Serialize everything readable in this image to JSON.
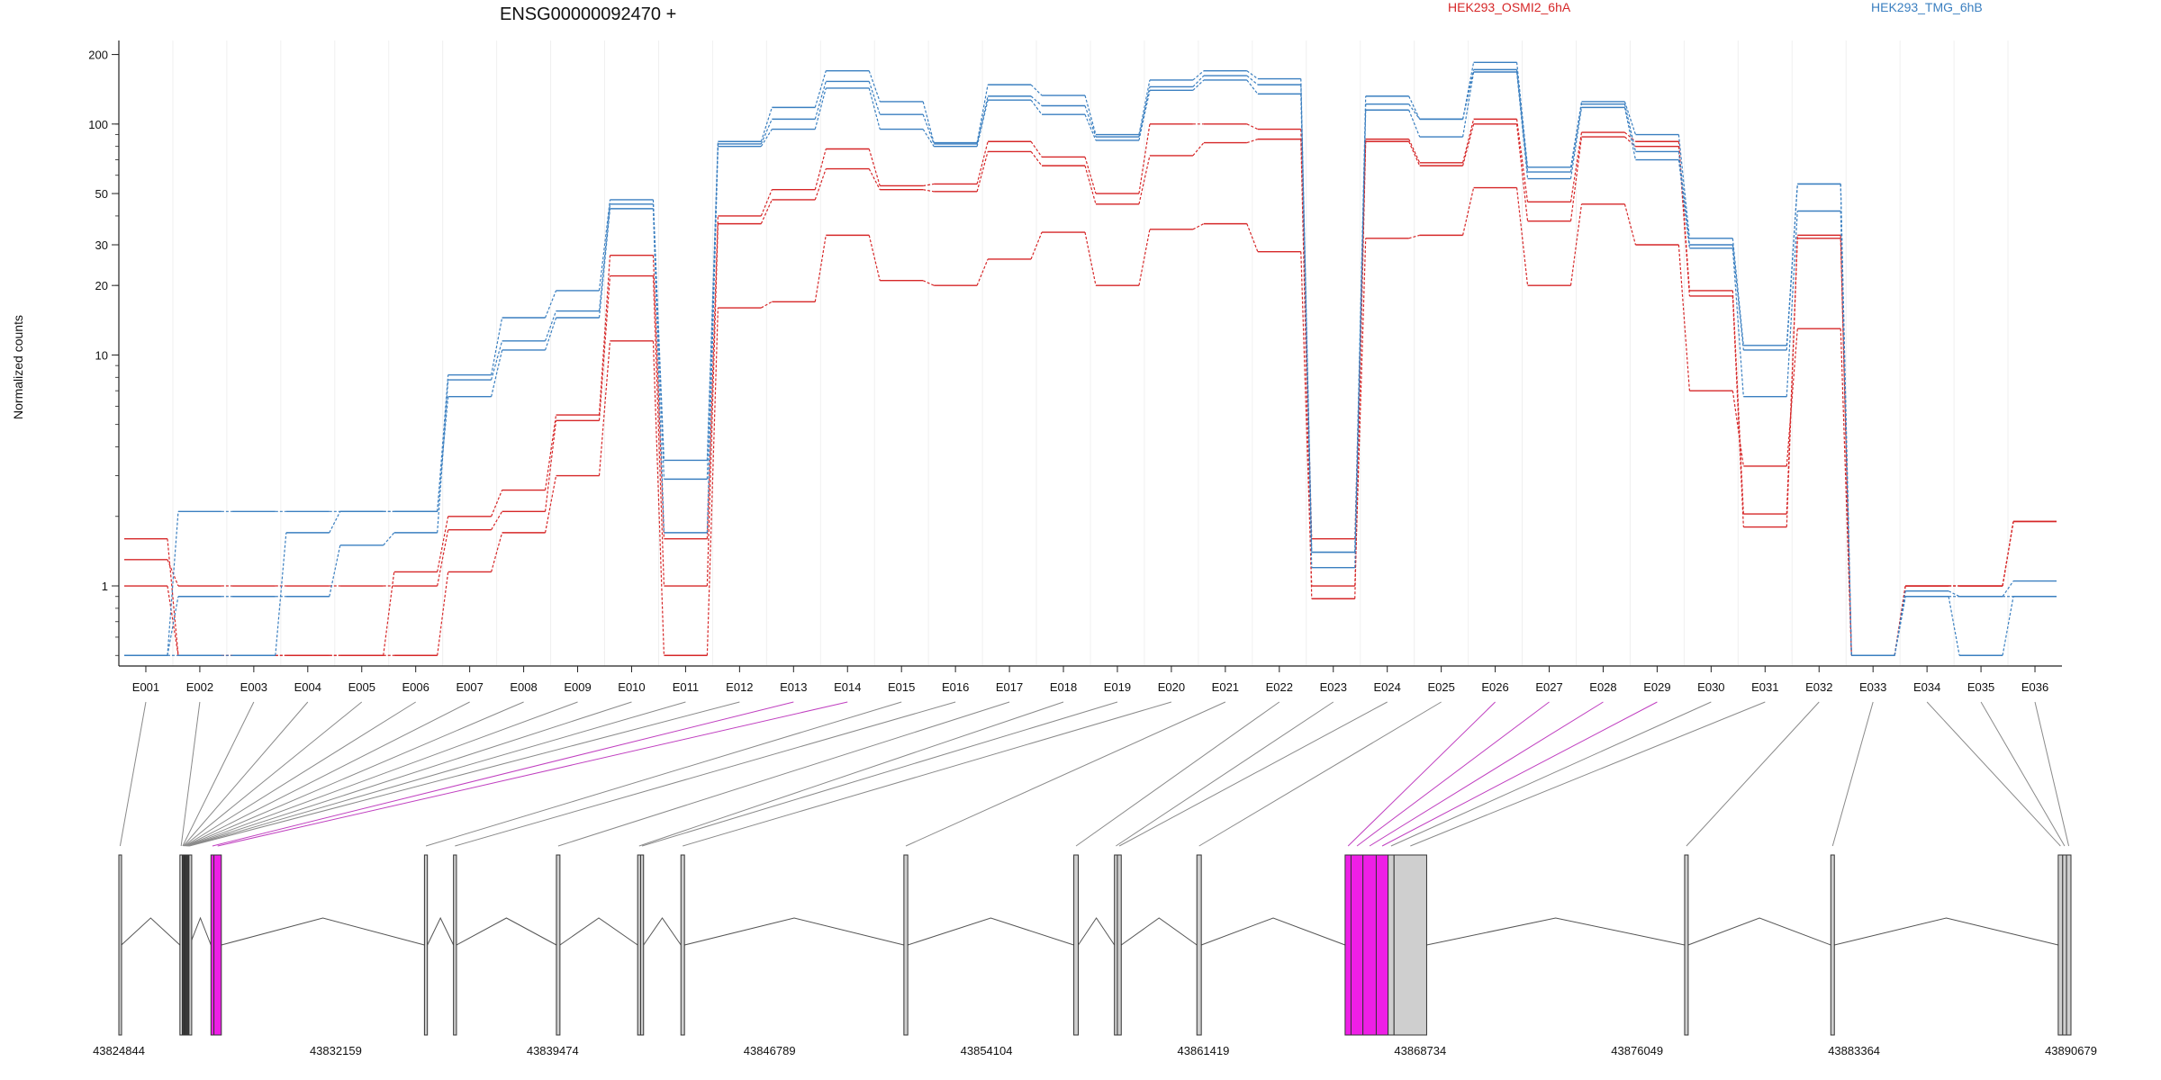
{
  "chart_data": {
    "type": "line",
    "title": "ENSG00000092470 +",
    "ylabel": "Normalized counts",
    "xlabel": "",
    "y_scale": "log",
    "ylim_display": [
      0.45,
      230
    ],
    "yticks": [
      1,
      10,
      20,
      30,
      50,
      100,
      200
    ],
    "zero_floor_display": 0.5,
    "grid": "vertical-light",
    "legend": [
      {
        "name": "HEK293_OSMI2_6hA",
        "color": "#d62728",
        "position": "top-right"
      },
      {
        "name": "HEK293_TMG_6hB",
        "color": "#3a7fc0",
        "position": "top-right"
      }
    ],
    "exons": [
      "E001",
      "E002",
      "E003",
      "E004",
      "E005",
      "E006",
      "E007",
      "E008",
      "E009",
      "E010",
      "E011",
      "E012",
      "E013",
      "E014",
      "E015",
      "E016",
      "E017",
      "E018",
      "E019",
      "E020",
      "E021",
      "E022",
      "E023",
      "E024",
      "E025",
      "E026",
      "E027",
      "E028",
      "E029",
      "E030",
      "E031",
      "E032",
      "E033",
      "E034",
      "E035",
      "E036"
    ],
    "series": [
      {
        "group": "HEK293_OSMI2_6hA",
        "color": "#d62728",
        "values": [
          1.6,
          0,
          0,
          0,
          0,
          1.15,
          2.0,
          2.6,
          5.5,
          27,
          1.6,
          40,
          52,
          78,
          54,
          55,
          84,
          72,
          50,
          100,
          100,
          95,
          1.6,
          86,
          68,
          105,
          46,
          92,
          84,
          19,
          2.05,
          32,
          0,
          1.0,
          1.0,
          1.9
        ]
      },
      {
        "group": "HEK293_OSMI2_6hA",
        "color": "#d62728",
        "values": [
          1.3,
          1.0,
          1.0,
          1.0,
          1.0,
          1.0,
          1.75,
          2.1,
          5.2,
          22,
          1.0,
          37,
          47,
          64,
          52,
          51,
          76,
          66,
          45,
          73,
          83,
          86,
          0.88,
          84,
          66,
          100,
          38,
          88,
          80,
          18,
          1.8,
          33,
          0,
          1.0,
          1.0,
          1.9
        ]
      },
      {
        "group": "HEK293_OSMI2_6hA",
        "color": "#d62728",
        "values": [
          1.0,
          0,
          0,
          0,
          0,
          0,
          1.15,
          1.7,
          3.0,
          11.5,
          0,
          16,
          17,
          33,
          21,
          20,
          26,
          34,
          20,
          35,
          37,
          28,
          1.0,
          32,
          33,
          53,
          20,
          45,
          30,
          7,
          3.3,
          13,
          0,
          1.0,
          1.0,
          1.9
        ]
      },
      {
        "group": "HEK293_TMG_6hB",
        "color": "#3a7fc0",
        "values": [
          0,
          2.1,
          2.1,
          2.1,
          2.1,
          2.1,
          8.2,
          14.5,
          19,
          47,
          3.5,
          84,
          118,
          170,
          125,
          83,
          148,
          133,
          90,
          155,
          170,
          157,
          1.4,
          132,
          105,
          185,
          65,
          125,
          90,
          32,
          11,
          55,
          0,
          0.95,
          0.9,
          1.05
        ]
      },
      {
        "group": "HEK293_TMG_6hB",
        "color": "#3a7fc0",
        "values": [
          0,
          0.9,
          0.9,
          0.9,
          1.5,
          1.7,
          7.8,
          11.5,
          15.5,
          45,
          2.9,
          82,
          105,
          153,
          110,
          82,
          132,
          120,
          88,
          145,
          162,
          148,
          1.4,
          122,
          105,
          172,
          62,
          122,
          76,
          30,
          10.5,
          55,
          0,
          0.9,
          0,
          0.9
        ]
      },
      {
        "group": "HEK293_TMG_6hB",
        "color": "#3a7fc0",
        "values": [
          0,
          0,
          0,
          1.7,
          2.1,
          2.1,
          6.6,
          10.5,
          14.5,
          43,
          1.7,
          80,
          95,
          143,
          95,
          80,
          127,
          110,
          85,
          140,
          155,
          135,
          1.2,
          115,
          88,
          168,
          58,
          118,
          70,
          29,
          6.6,
          42,
          0,
          0.9,
          0.9,
          0.9
        ]
      }
    ],
    "genomic_coordinates": [
      43824844,
      43832159,
      43839474,
      43846789,
      43854104,
      43861419,
      43868734,
      43876049,
      43883364,
      43890679
    ],
    "gene_model": {
      "region_start": 43824844,
      "region_end": 43890679,
      "exon_blocks": [
        {
          "exon": "E001",
          "start": 43824844,
          "end": 43824930,
          "highlight": false
        },
        {
          "exon": "E002",
          "start": 43826904,
          "end": 43826985,
          "highlight": false
        },
        {
          "exon": "E003",
          "start": 43826985,
          "end": 43827010,
          "highlight": false
        },
        {
          "exon": "E004",
          "start": 43827010,
          "end": 43827035,
          "highlight": false
        },
        {
          "exon": "E005",
          "start": 43827035,
          "end": 43827060,
          "highlight": false
        },
        {
          "exon": "E006",
          "start": 43827060,
          "end": 43827085,
          "highlight": false
        },
        {
          "exon": "E007",
          "start": 43827085,
          "end": 43827110,
          "highlight": false
        },
        {
          "exon": "E008",
          "start": 43827110,
          "end": 43827135,
          "highlight": false
        },
        {
          "exon": "E009",
          "start": 43827135,
          "end": 43827160,
          "highlight": false
        },
        {
          "exon": "E010",
          "start": 43827160,
          "end": 43827185,
          "highlight": false
        },
        {
          "exon": "E011",
          "start": 43827185,
          "end": 43827210,
          "highlight": false
        },
        {
          "exon": "E012",
          "start": 43827210,
          "end": 43827235,
          "highlight": false
        },
        {
          "exon": "E013",
          "start": 43827950,
          "end": 43828050,
          "highlight": true
        },
        {
          "exon": "E014",
          "start": 43828050,
          "end": 43828300,
          "highlight": true
        },
        {
          "exon": "E015",
          "start": 43835150,
          "end": 43835250,
          "highlight": false
        },
        {
          "exon": "E016",
          "start": 43836130,
          "end": 43836230,
          "highlight": false
        },
        {
          "exon": "E017",
          "start": 43839600,
          "end": 43839720,
          "highlight": false
        },
        {
          "exon": "E018",
          "start": 43842340,
          "end": 43842440,
          "highlight": false
        },
        {
          "exon": "E019",
          "start": 43842440,
          "end": 43842540,
          "highlight": false
        },
        {
          "exon": "E020",
          "start": 43843800,
          "end": 43843920,
          "highlight": false
        },
        {
          "exon": "E021",
          "start": 43851320,
          "end": 43851450,
          "highlight": false
        },
        {
          "exon": "E022",
          "start": 43857050,
          "end": 43857200,
          "highlight": false
        },
        {
          "exon": "E023",
          "start": 43858420,
          "end": 43858520,
          "highlight": false
        },
        {
          "exon": "E024",
          "start": 43858520,
          "end": 43858650,
          "highlight": false
        },
        {
          "exon": "E025",
          "start": 43861200,
          "end": 43861350,
          "highlight": false
        },
        {
          "exon": "E026",
          "start": 43866200,
          "end": 43866400,
          "highlight": true
        },
        {
          "exon": "E027",
          "start": 43866400,
          "end": 43866800,
          "highlight": true
        },
        {
          "exon": "E028",
          "start": 43866800,
          "end": 43867250,
          "highlight": true
        },
        {
          "exon": "E029",
          "start": 43867250,
          "end": 43867650,
          "highlight": true
        },
        {
          "exon": "E030",
          "start": 43867650,
          "end": 43867850,
          "highlight": false
        },
        {
          "exon": "E031",
          "start": 43867850,
          "end": 43868950,
          "highlight": false
        },
        {
          "exon": "E032",
          "start": 43877650,
          "end": 43877770,
          "highlight": false
        },
        {
          "exon": "E033",
          "start": 43882580,
          "end": 43882700,
          "highlight": false
        },
        {
          "exon": "E034",
          "start": 43890250,
          "end": 43890400,
          "highlight": false
        },
        {
          "exon": "E035",
          "start": 43890400,
          "end": 43890530,
          "highlight": false
        },
        {
          "exon": "E036",
          "start": 43890530,
          "end": 43890679,
          "highlight": false
        }
      ]
    }
  },
  "colors": {
    "osmi": "#d62728",
    "tmg": "#3a7fc0",
    "highlight": "#ee1fe6",
    "exon_fill": "#cfcfcf",
    "connector": "#8a8a8a",
    "connector_highlight": "#c040c0"
  }
}
